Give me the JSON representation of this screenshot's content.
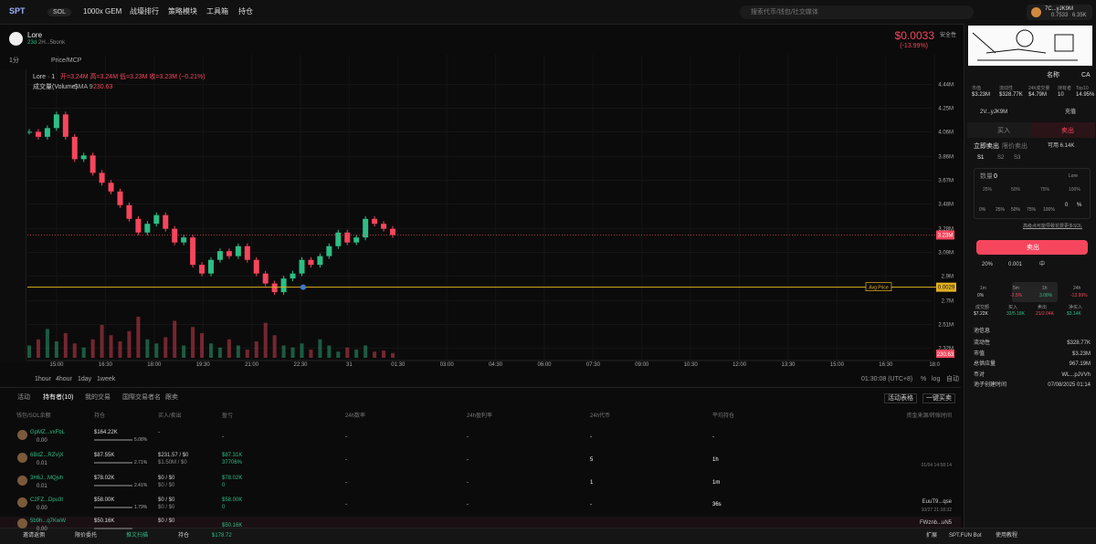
{
  "nav": {
    "logo": "SPT",
    "chain": "SOL",
    "items": [
      "1000x GEM",
      "战壕排行",
      "策略模块",
      "工具箱",
      "持仓"
    ],
    "search": "搜索代币/钱包/社交媒体",
    "user": "7C...yJK9M",
    "balance_sol": "0.7533",
    "balance_usd": "6.35K"
  },
  "token": {
    "name": "Lore",
    "age": "23d",
    "address": "2H...5bonk",
    "price": "$0.0033",
    "change": "(-13.99%)",
    "safety": "安全性"
  },
  "toolbar": {
    "interval": "1分",
    "mode": "Price/MCP"
  },
  "chart_data": {
    "type": "candlestick",
    "legend": "Lore · 1",
    "ohlc": "开=3.24M 高=3.24M 低=3.23M 收=3.23M (−0.21%)",
    "volume_legend": "成交量(Volume)",
    "sma": "SMA 9",
    "sma_value": "230.63",
    "closes": [
      4.06,
      4.02,
      4.09,
      4.2,
      4.02,
      3.84,
      3.87,
      3.73,
      3.65,
      3.58,
      3.47,
      3.36,
      3.25,
      3.32,
      3.39,
      3.28,
      3.17,
      3.21,
      2.99,
      2.92,
      3.03,
      3.1,
      3.06,
      3.14,
      3.03,
      2.92,
      2.84,
      2.77,
      2.88,
      2.92,
      3.03,
      2.99,
      3.06,
      3.14,
      3.25,
      3.17,
      3.21,
      3.36,
      3.32,
      3.28,
      3.23
    ],
    "volumes": [
      600,
      900,
      1400,
      800,
      1200,
      700,
      500,
      900,
      1600,
      1100,
      800,
      1300,
      2000,
      900,
      700,
      1000,
      1800,
      600,
      1500,
      1200,
      700,
      500,
      900,
      600,
      400,
      800,
      1700,
      1100,
      600,
      500,
      700,
      400,
      900,
      600,
      300,
      500,
      400,
      600,
      300,
      350,
      230
    ],
    "ylim": [
      2.22,
      4.68
    ],
    "vlim": [
      0,
      4000
    ],
    "yticks": [
      {
        "value": 4.44,
        "label": "4.44M"
      },
      {
        "value": 4.25,
        "label": "4.25M"
      },
      {
        "value": 4.06,
        "label": "4.06M"
      },
      {
        "value": 3.86,
        "label": "3.86M"
      },
      {
        "value": 3.67,
        "label": "3.67M"
      },
      {
        "value": 3.48,
        "label": "3.48M"
      },
      {
        "value": 3.28,
        "label": "3.28M"
      },
      {
        "value": 3.09,
        "label": "3.09M"
      },
      {
        "value": 2.9,
        "label": "2.9M"
      },
      {
        "value": 2.7,
        "label": "2.7M"
      },
      {
        "value": 2.51,
        "label": "2.51M"
      },
      {
        "value": 2.32,
        "label": "2.32M"
      }
    ],
    "x_labels": [
      "15:00",
      "16:30",
      "18:00",
      "19:30",
      "21:00",
      "22:30",
      "31",
      "01:30",
      "03:00",
      "04:30",
      "06:00",
      "07:30",
      "09:00",
      "10:30",
      "12:00",
      "13:30",
      "15:00",
      "16:30",
      "18:0"
    ],
    "last_price": {
      "value": 3.23,
      "label": "3.23M"
    },
    "avg_price": {
      "value": 2.81,
      "label": "0.0029",
      "name": "Avg Price"
    },
    "volume_tag": "230.63",
    "up_color": "#2ebd85",
    "down_color": "#f6465d",
    "ranges": [
      "1hour",
      "4hour",
      "1day",
      "1week"
    ],
    "clock": "01:30:08 (UTC+8)",
    "options": [
      "%",
      "log",
      "自动"
    ]
  },
  "tabs": [
    "活动",
    "持有者(10)",
    "我的交易",
    "国際交易者名",
    "跟卖"
  ],
  "table_buttons": [
    "活动表格",
    "一键买卖"
  ],
  "table": {
    "headers": [
      "钱包/SOL余额",
      "持仓",
      "买入/卖出",
      "盈亏",
      "24h数率",
      "24h盈利率",
      "24h代币",
      "平均持仓",
      "资金来源/转账时间"
    ],
    "rows": [
      {
        "wallet": "GpMZ...vxFbL",
        "sol": "0.00",
        "hold": "$164.22K",
        "pct": "5.08%",
        "buy": "-",
        "pnl": "-",
        "h24a": "-",
        "h24b": "-",
        "h24c": "-",
        "avg": "-"
      },
      {
        "wallet": "6BdZ...RZVjX",
        "sol": "0.01",
        "hold": "$87.55K",
        "pct": "2.71%",
        "buy": "$231.57 / $0",
        "buy2": "$1.50M / $0",
        "pnl": "$87.31K",
        "pnl2": "37706%",
        "h24a": "-",
        "h24b": "-",
        "h24c": "5",
        "avg": "1h",
        "time": "01/04 14:58:14"
      },
      {
        "wallet": "3H6J...MQjvh",
        "sol": "0.01",
        "hold": "$78.02K",
        "pct": "2.41%",
        "buy": "$0 / $0",
        "buy2": "$0 / $0",
        "pnl": "$78.02K",
        "pnl2": "0",
        "h24a": "-",
        "h24b": "-",
        "h24c": "1",
        "avg": "1m"
      },
      {
        "wallet": "C2FZ...Dpu3t",
        "sol": "0.00",
        "hold": "$58.00K",
        "pct": "1.79%",
        "buy": "$0 / $0",
        "buy2": "$0 / $0",
        "pnl": "$58.00K",
        "pnl2": "0",
        "h24a": "-",
        "h24b": "-",
        "h24c": "-",
        "avg": "36s",
        "source": "EuuT9...qse",
        "time": "10/27 21:18:32"
      },
      {
        "wallet": "5b9h...q7KwW",
        "sol": "0.00",
        "hold": "$50.16K",
        "buy": "$0 / $0",
        "pnl": "$50.16K",
        "source": "FWznb...uN5"
      }
    ]
  },
  "side": {
    "links": [
      "名称",
      "CA"
    ],
    "stats": [
      {
        "label": "市值",
        "value": "$3.23M"
      },
      {
        "label": "流动性",
        "value": "$328.77K"
      },
      {
        "label": "24h成交量",
        "value": "$4.79M"
      },
      {
        "label": "持有者",
        "value": "10"
      },
      {
        "label": "Top10",
        "value": "14.95%"
      }
    ],
    "wallet": "2V...yJK9M",
    "deposit": "充值",
    "buy_tab": "买入",
    "sell_tab": "卖出",
    "order_types": [
      "立即卖出",
      "限价卖出"
    ],
    "available": "可用 6.14K",
    "presets": [
      "S1",
      "S2",
      "S3"
    ],
    "amount_label": "数量",
    "amount": "0",
    "unit": "Lore",
    "quick": [
      "25%",
      "50%",
      "75%",
      "100%"
    ],
    "slider": [
      "0%",
      "25%",
      "50%",
      "75%",
      "100%"
    ],
    "slider_value": "0",
    "slider_unit": "%",
    "note": "高级点可能导致花费更多SOL",
    "sell_button": "卖出",
    "settings": [
      "20%",
      "0.001",
      "中"
    ],
    "periods": [
      {
        "label": "1m",
        "value": "0%"
      },
      {
        "label": "5m",
        "value": "-2.5%"
      },
      {
        "label": "1h",
        "value": "3.08%"
      },
      {
        "label": "24h",
        "value": "-13.99%"
      }
    ],
    "flows": [
      {
        "label": "成交额",
        "value": "$7.22K"
      },
      {
        "label": "买入",
        "value": "32/5.18K"
      },
      {
        "label": "卖出",
        "value": "21/2.04K"
      },
      {
        "label": "净买入",
        "value": "$3.14K"
      }
    ],
    "pool_title": "池信息",
    "pool": [
      {
        "label": "流动性",
        "value": "$328.77K"
      },
      {
        "label": "市值",
        "value": "$3.23M"
      },
      {
        "label": "总供应量",
        "value": "967.19M"
      },
      {
        "label": "币对",
        "value": "WL...pJVVh"
      },
      {
        "label": "池子创建时间",
        "value": "07/08/2025 01:14"
      }
    ]
  },
  "footer": {
    "left": [
      "邀请返佣",
      "限价委托",
      "推文扫描",
      "持仓"
    ],
    "balance": "$178.72",
    "right": [
      "扩展",
      "SPT.FUN Bot",
      "使用教程"
    ]
  }
}
